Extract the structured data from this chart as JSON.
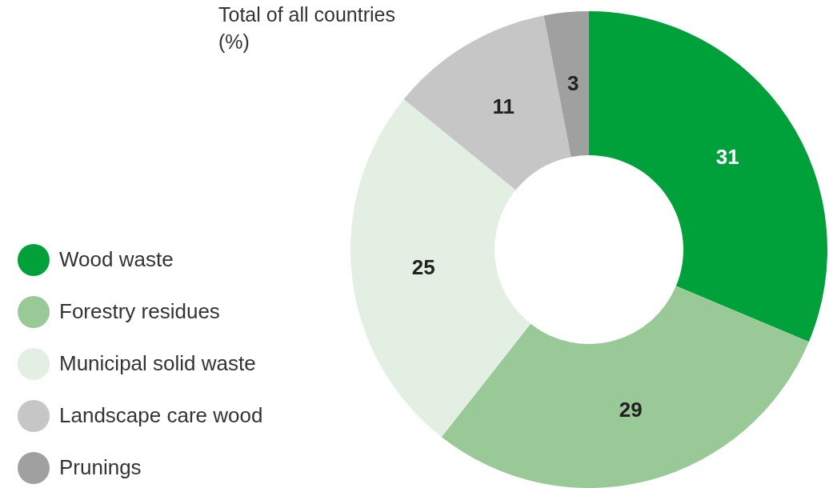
{
  "chart_data": {
    "type": "donut",
    "title": "Total of all countries\n(%)",
    "categories": [
      "Wood waste",
      "Forestry residues",
      "Municipal solid waste",
      "Landscape care wood",
      "Prunings"
    ],
    "values": [
      31,
      29,
      25,
      11,
      3
    ],
    "colors": [
      "#00a13a",
      "#99c997",
      "#e2efe2",
      "#c6c6c6",
      "#a0a0a0"
    ],
    "data_labels": true,
    "legend": "bottom left"
  }
}
